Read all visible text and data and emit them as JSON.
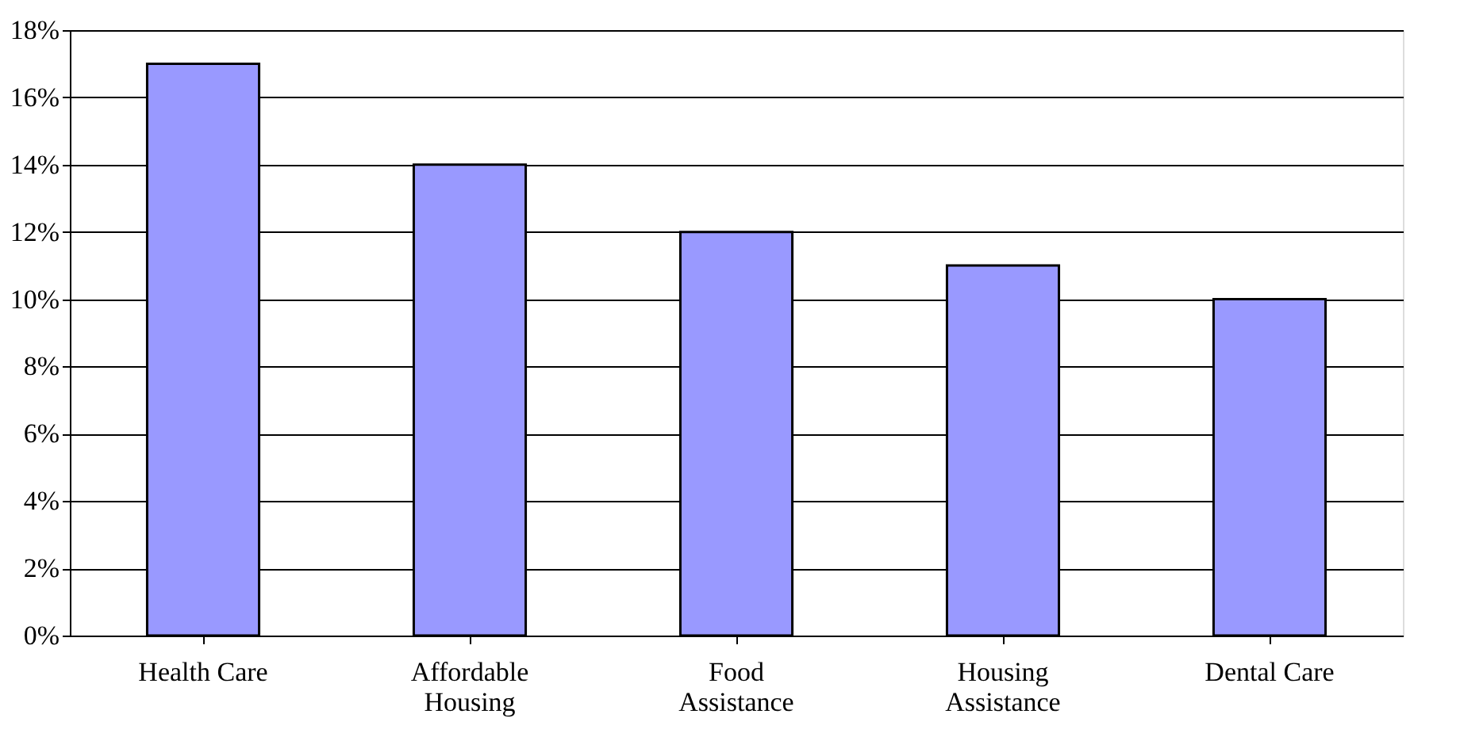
{
  "chart_data": {
    "type": "bar",
    "categories": [
      "Health Care",
      "Affordable Housing",
      "Food Assistance",
      "Housing Assistance",
      "Dental Care"
    ],
    "values": [
      17,
      14,
      12,
      11,
      10
    ],
    "color": "#9999ff",
    "ylim": [
      0,
      18
    ],
    "yticks": [
      {
        "value": 0,
        "label": "0%"
      },
      {
        "value": 2,
        "label": "2%"
      },
      {
        "value": 4,
        "label": "4%"
      },
      {
        "value": 6,
        "label": "6%"
      },
      {
        "value": 8,
        "label": "8%"
      },
      {
        "value": 10,
        "label": "10%"
      },
      {
        "value": 12,
        "label": "12%"
      },
      {
        "value": 14,
        "label": "14%"
      },
      {
        "value": 16,
        "label": "16%"
      },
      {
        "value": 18,
        "label": "18%"
      }
    ],
    "grid": "y"
  }
}
